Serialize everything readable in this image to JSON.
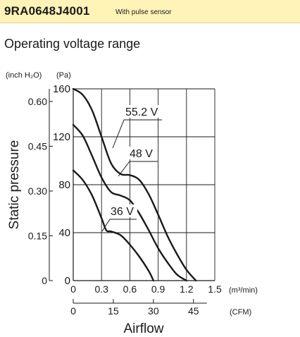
{
  "header": {
    "model": "9RA0648J4001",
    "model_note": "With pulse sensor"
  },
  "subtitle": "Operating voltage range",
  "chart_data": {
    "type": "line",
    "title": "Operating voltage range",
    "xlabel": "Airflow",
    "ylabel": "Static pressure",
    "x_unit_primary": "(m³/min)",
    "x_unit_secondary": "(CFM)",
    "y_unit_left": "(inch H₂O)",
    "y_unit_right": "(Pa)",
    "xlim": [
      0,
      1.5
    ],
    "ylim": [
      0,
      160
    ],
    "x_ticks": [
      "0",
      "0.3",
      "0.6",
      "0.9",
      "1.2",
      "1.5"
    ],
    "x_tick_values": [
      0,
      0.3,
      0.6,
      0.9,
      1.2,
      1.5
    ],
    "x2_ticks": [
      "0",
      "15",
      "30",
      "45"
    ],
    "x2_tick_values": [
      0,
      15,
      30,
      45
    ],
    "y_ticks": [
      "0",
      "40",
      "80",
      "120",
      "160"
    ],
    "y_tick_values": [
      0,
      40,
      80,
      120,
      160
    ],
    "y2_ticks": [
      "0",
      "0.15",
      "0.30",
      "0.45",
      "0.60"
    ],
    "y2_tick_values": [
      0,
      0.15,
      0.3,
      0.45,
      0.6
    ],
    "grid": true,
    "series": [
      {
        "name": "55.2 V",
        "x": [
          0,
          0.1,
          0.2,
          0.3,
          0.4,
          0.5,
          0.6,
          0.7,
          0.8,
          0.9,
          1.0,
          1.1,
          1.2,
          1.3
        ],
        "y": [
          160,
          155,
          142,
          120,
          98,
          89,
          88,
          84,
          72,
          55,
          37,
          22,
          9,
          0
        ]
      },
      {
        "name": "48 V",
        "x": [
          0,
          0.1,
          0.2,
          0.3,
          0.4,
          0.5,
          0.6,
          0.7,
          0.8,
          0.9,
          1.0,
          1.1,
          1.2
        ],
        "y": [
          130,
          121,
          104,
          86,
          74,
          71,
          67,
          56,
          42,
          27,
          15,
          5,
          0
        ]
      },
      {
        "name": "36 V",
        "x": [
          0,
          0.1,
          0.2,
          0.3,
          0.35,
          0.4,
          0.5,
          0.6,
          0.7,
          0.8,
          0.85
        ],
        "y": [
          92,
          84,
          71,
          52,
          42,
          41,
          38,
          30,
          20,
          8,
          0
        ]
      }
    ]
  }
}
